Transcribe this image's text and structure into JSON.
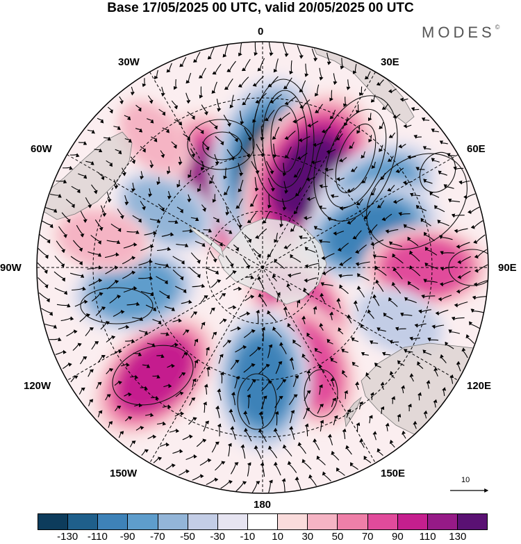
{
  "title": "Base 17/05/2025 00 UTC, valid 20/05/2025 00 UTC",
  "logo": {
    "text": "MODES",
    "mark": "©"
  },
  "longitude_labels": {
    "lon_0": "0",
    "lon_30e": "30E",
    "lon_60e": "60E",
    "lon_90e": "90E",
    "lon_120e": "120E",
    "lon_150e": "150E",
    "lon_180": "180",
    "lon_150w": "150W",
    "lon_120w": "120W",
    "lon_90w": "90W",
    "lon_60w": "60W",
    "lon_30w": "30W"
  },
  "reference_vector": {
    "label": "10"
  },
  "colorbar": {
    "colors": [
      "#0d3c5c",
      "#1f5f8b",
      "#3e82b8",
      "#5e9dcc",
      "#93b5d8",
      "#c3cde6",
      "#e6e4f1",
      "#ffffff",
      "#fadcdc",
      "#f5b4c4",
      "#ef7fa8",
      "#e14b9b",
      "#c51f8e",
      "#961a87",
      "#5a1173"
    ],
    "tick_labels": [
      "-130",
      "-110",
      "-90",
      "-70",
      "-50",
      "-30",
      "-10",
      "10",
      "30",
      "50",
      "70",
      "90",
      "110",
      "130"
    ]
  },
  "anomaly_centers": [
    {
      "name": "anomaly-30w",
      "lon": -28,
      "colat": 16,
      "value": 110
    },
    {
      "name": "anomaly-0",
      "lon": 5,
      "colat": 18,
      "value": -130
    },
    {
      "name": "anomaly-30e",
      "lon": 27,
      "colat": 18,
      "value": 130
    },
    {
      "name": "anomaly-60e",
      "lon": 57,
      "colat": 24,
      "value": -80
    },
    {
      "name": "anomaly-75e",
      "lon": 72,
      "colat": 20,
      "value": -90
    },
    {
      "name": "anomaly-90e",
      "lon": 90,
      "colat": 29,
      "value": 70
    },
    {
      "name": "anomaly-135e",
      "lon": 135,
      "colat": 9,
      "value": 70
    },
    {
      "name": "anomaly-150e",
      "lon": 155,
      "colat": 19,
      "value": 80
    },
    {
      "name": "anomaly-180",
      "lon": 180,
      "colat": 20,
      "value": -90
    },
    {
      "name": "anomaly-135w",
      "lon": -135,
      "colat": 27,
      "value": 90
    },
    {
      "name": "anomaly-100w",
      "lon": -100,
      "colat": 23,
      "value": -70
    },
    {
      "name": "anomaly-60w",
      "lon": -60,
      "colat": 20,
      "value": -50
    },
    {
      "name": "anomaly-80w",
      "lon": -80,
      "colat": 29,
      "value": 40
    },
    {
      "name": "anomaly-40w",
      "lon": -40,
      "colat": 30,
      "value": 30
    },
    {
      "name": "anomaly-110e",
      "lon": 112,
      "colat": 26,
      "value": -40
    }
  ]
}
